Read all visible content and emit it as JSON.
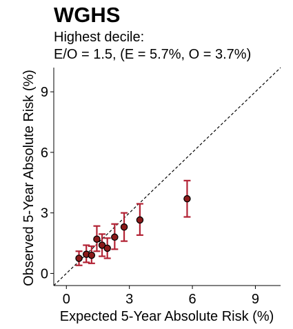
{
  "chart_data": {
    "type": "scatter",
    "title": "WGHS",
    "subtitle_lines": [
      "Highest decile:",
      "E/O = 1.5, (E = 5.7%, O = 3.7%)"
    ],
    "xlabel": "Expected 5-Year Absolute Risk (%)",
    "ylabel": "Observed 5-Year Absolute Risk (%)",
    "xlim": [
      -0.6,
      10.2
    ],
    "ylim": [
      -0.6,
      10.2
    ],
    "xticks": [
      0,
      3,
      6,
      9
    ],
    "yticks": [
      0,
      3,
      6,
      9
    ],
    "reference_line": "y = x (dashed)",
    "grid": false,
    "colors": {
      "point_fill": "#8b1a1a",
      "error_bar": "#b22234",
      "reference": "#000000"
    },
    "points": [
      {
        "x": 0.6,
        "y": 0.75,
        "ymin": 0.4,
        "ymax": 1.1
      },
      {
        "x": 0.95,
        "y": 0.95,
        "ymin": 0.55,
        "ymax": 1.4
      },
      {
        "x": 1.2,
        "y": 0.9,
        "ymin": 0.5,
        "ymax": 1.35
      },
      {
        "x": 1.45,
        "y": 1.7,
        "ymin": 1.1,
        "ymax": 2.35
      },
      {
        "x": 1.7,
        "y": 1.4,
        "ymin": 0.85,
        "ymax": 1.95
      },
      {
        "x": 1.95,
        "y": 1.25,
        "ymin": 0.75,
        "ymax": 1.75
      },
      {
        "x": 2.3,
        "y": 1.8,
        "ymin": 1.2,
        "ymax": 2.45
      },
      {
        "x": 2.75,
        "y": 2.3,
        "ymin": 1.6,
        "ymax": 3.0
      },
      {
        "x": 3.5,
        "y": 2.65,
        "ymin": 1.9,
        "ymax": 3.45
      },
      {
        "x": 5.75,
        "y": 3.7,
        "ymin": 2.8,
        "ymax": 4.6
      }
    ]
  }
}
